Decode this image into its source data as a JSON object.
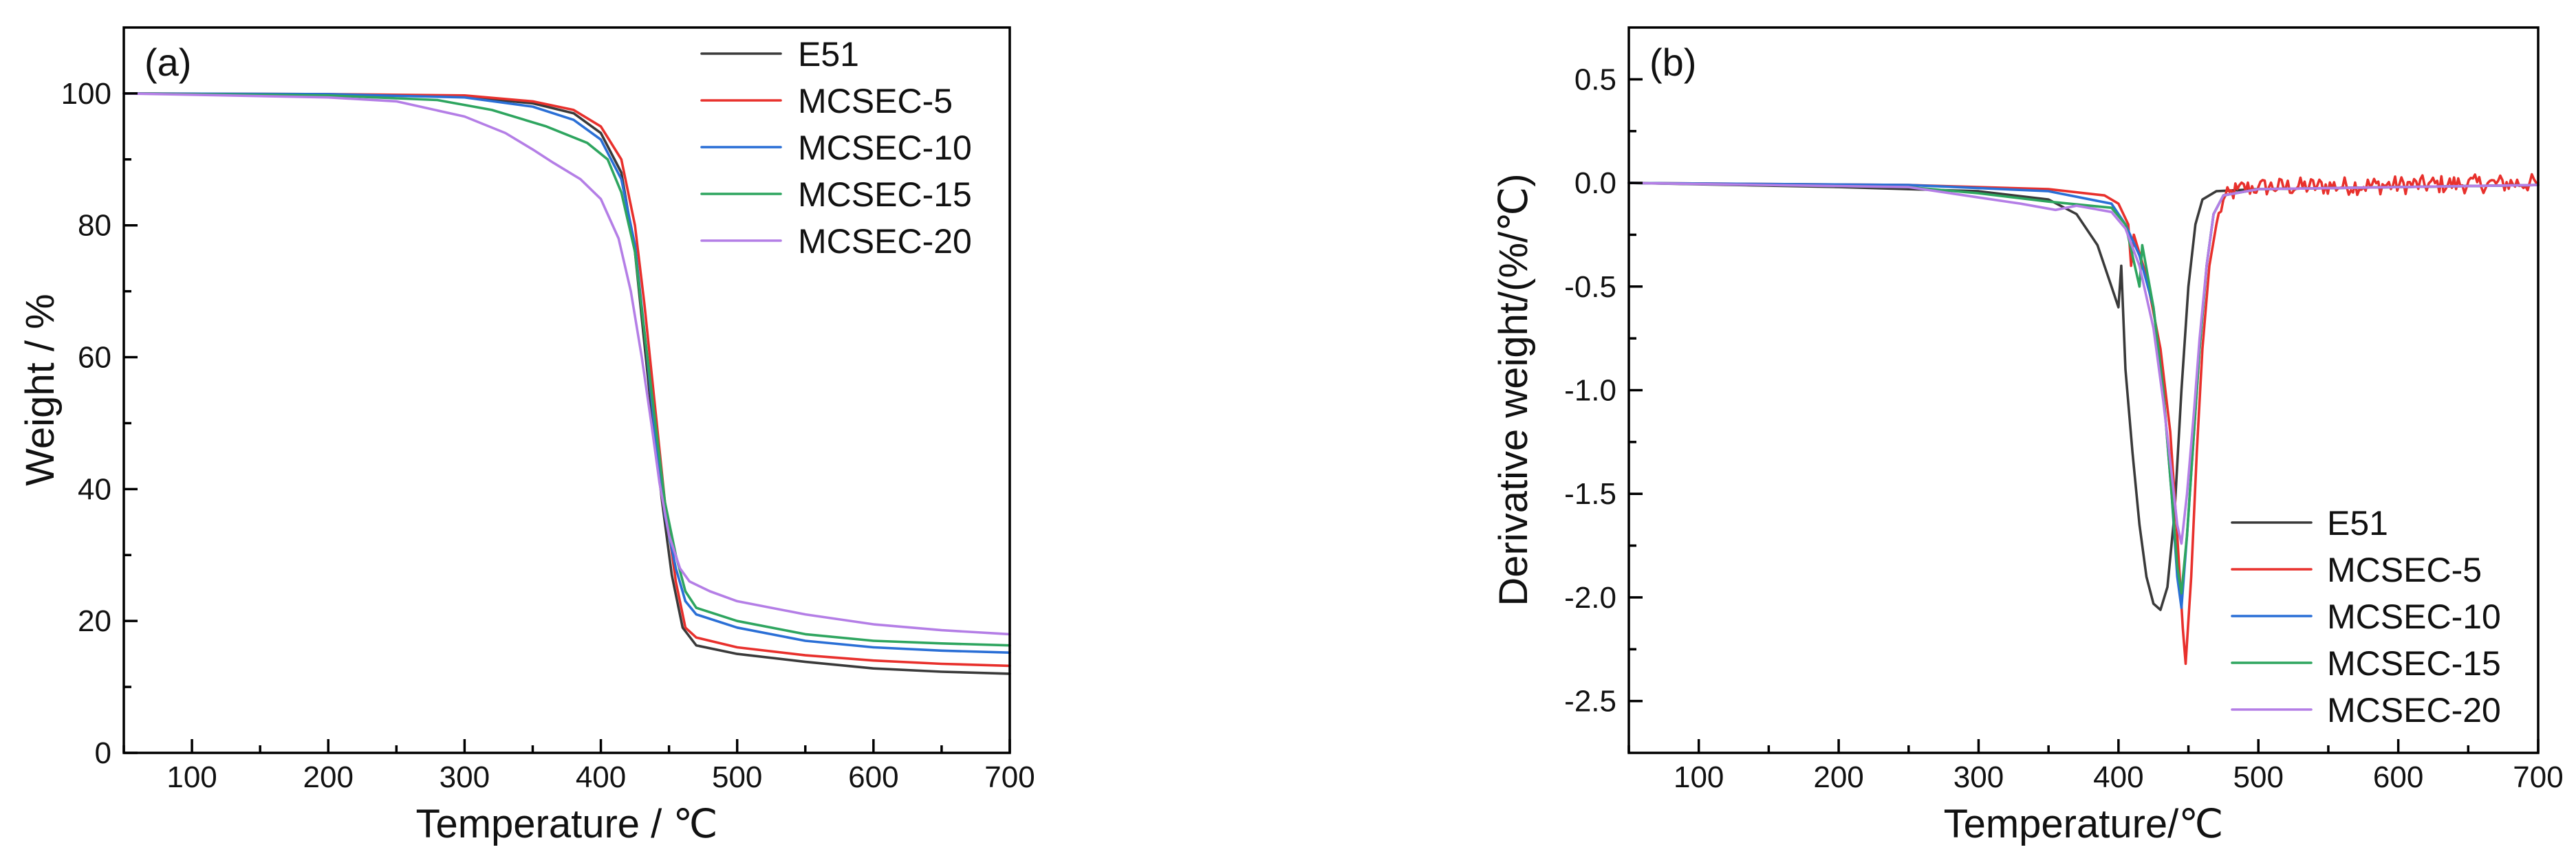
{
  "colors": {
    "E51": "#3a3a3a",
    "MCSEC-5": "#e8302c",
    "MCSEC-10": "#2a6fd6",
    "MCSEC-15": "#2ea55f",
    "MCSEC-20": "#b47ee6"
  },
  "chart_data": [
    {
      "type": "line",
      "panel_label": "(a)",
      "xlabel": "Temperature / ℃",
      "ylabel": "Weight / %",
      "xlim": [
        50,
        700
      ],
      "ylim": [
        0,
        110
      ],
      "xticks": [
        100,
        200,
        300,
        400,
        500,
        600,
        700
      ],
      "yticks": [
        0,
        20,
        40,
        60,
        80,
        100
      ],
      "legend_position": "top-right",
      "series": [
        {
          "name": "E51",
          "points": [
            [
              50,
              100
            ],
            [
              200,
              99.8
            ],
            [
              300,
              99.5
            ],
            [
              350,
              98.5
            ],
            [
              380,
              97
            ],
            [
              400,
              94
            ],
            [
              415,
              88
            ],
            [
              425,
              76
            ],
            [
              432,
              62
            ],
            [
              438,
              50
            ],
            [
              445,
              38
            ],
            [
              452,
              27
            ],
            [
              460,
              19
            ],
            [
              470,
              16.3
            ],
            [
              500,
              15
            ],
            [
              550,
              13.8
            ],
            [
              600,
              12.8
            ],
            [
              650,
              12.3
            ],
            [
              700,
              12
            ]
          ]
        },
        {
          "name": "MCSEC-5",
          "points": [
            [
              50,
              100
            ],
            [
              200,
              99.9
            ],
            [
              300,
              99.7
            ],
            [
              350,
              98.8
            ],
            [
              380,
              97.5
            ],
            [
              400,
              95
            ],
            [
              415,
              90
            ],
            [
              425,
              80
            ],
            [
              432,
              68
            ],
            [
              440,
              52
            ],
            [
              447,
              38
            ],
            [
              455,
              26
            ],
            [
              462,
              19
            ],
            [
              470,
              17.5
            ],
            [
              500,
              16
            ],
            [
              550,
              14.8
            ],
            [
              600,
              14
            ],
            [
              650,
              13.5
            ],
            [
              700,
              13.2
            ]
          ]
        },
        {
          "name": "MCSEC-10",
          "points": [
            [
              50,
              100
            ],
            [
              200,
              99.9
            ],
            [
              300,
              99.4
            ],
            [
              350,
              98
            ],
            [
              380,
              96
            ],
            [
              400,
              93
            ],
            [
              415,
              87
            ],
            [
              425,
              77
            ],
            [
              433,
              62
            ],
            [
              440,
              48
            ],
            [
              447,
              36
            ],
            [
              455,
              28
            ],
            [
              462,
              23
            ],
            [
              470,
              21
            ],
            [
              500,
              19
            ],
            [
              550,
              17
            ],
            [
              600,
              16
            ],
            [
              650,
              15.5
            ],
            [
              700,
              15.2
            ]
          ]
        },
        {
          "name": "MCSEC-15",
          "points": [
            [
              50,
              100
            ],
            [
              200,
              99.7
            ],
            [
              280,
              99
            ],
            [
              320,
              97.5
            ],
            [
              360,
              95
            ],
            [
              390,
              92.5
            ],
            [
              405,
              90
            ],
            [
              415,
              85
            ],
            [
              425,
              76
            ],
            [
              433,
              62
            ],
            [
              440,
              50
            ],
            [
              447,
              38
            ],
            [
              455,
              30
            ],
            [
              462,
              24.5
            ],
            [
              470,
              22
            ],
            [
              500,
              20
            ],
            [
              550,
              18
            ],
            [
              600,
              17
            ],
            [
              650,
              16.6
            ],
            [
              700,
              16.3
            ]
          ]
        },
        {
          "name": "MCSEC-20",
          "points": [
            [
              50,
              100
            ],
            [
              200,
              99.4
            ],
            [
              250,
              98.8
            ],
            [
              300,
              96.5
            ],
            [
              330,
              94
            ],
            [
              350,
              91.5
            ],
            [
              365,
              89.5
            ],
            [
              385,
              87
            ],
            [
              400,
              84
            ],
            [
              413,
              78
            ],
            [
              422,
              70
            ],
            [
              430,
              60
            ],
            [
              437,
              50
            ],
            [
              443,
              41
            ],
            [
              450,
              33
            ],
            [
              458,
              28
            ],
            [
              465,
              26
            ],
            [
              480,
              24.5
            ],
            [
              500,
              23
            ],
            [
              550,
              21
            ],
            [
              600,
              19.5
            ],
            [
              650,
              18.6
            ],
            [
              700,
              18
            ]
          ]
        }
      ]
    },
    {
      "type": "line",
      "panel_label": "(b)",
      "xlabel": "Temperature/℃",
      "ylabel": "Derivative weight/(%/℃)",
      "xlim": [
        50,
        700
      ],
      "ylim": [
        -2.75,
        0.75
      ],
      "xticks": [
        100,
        200,
        300,
        400,
        500,
        600,
        700
      ],
      "yticks": [
        -2.5,
        -2.0,
        -1.5,
        -1.0,
        -0.5,
        0.0,
        0.5
      ],
      "ytick_labels": [
        "-2.5",
        "-2.0",
        "-1.5",
        "-1.0",
        "-0.5",
        "0.0",
        "0.5"
      ],
      "legend_position": "bottom-right",
      "series": [
        {
          "name": "E51",
          "points": [
            [
              50,
              0
            ],
            [
              200,
              -0.02
            ],
            [
              300,
              -0.04
            ],
            [
              350,
              -0.08
            ],
            [
              370,
              -0.15
            ],
            [
              385,
              -0.3
            ],
            [
              395,
              -0.5
            ],
            [
              400,
              -0.6
            ],
            [
              402,
              -0.4
            ],
            [
              405,
              -0.9
            ],
            [
              410,
              -1.3
            ],
            [
              415,
              -1.65
            ],
            [
              420,
              -1.9
            ],
            [
              425,
              -2.03
            ],
            [
              430,
              -2.06
            ],
            [
              435,
              -1.95
            ],
            [
              440,
              -1.6
            ],
            [
              445,
              -1.0
            ],
            [
              450,
              -0.5
            ],
            [
              455,
              -0.2
            ],
            [
              460,
              -0.08
            ],
            [
              470,
              -0.04
            ],
            [
              500,
              -0.03
            ],
            [
              600,
              -0.02
            ],
            [
              700,
              -0.01
            ]
          ]
        },
        {
          "name": "MCSEC-5",
          "points": [
            [
              50,
              0
            ],
            [
              250,
              -0.01
            ],
            [
              350,
              -0.03
            ],
            [
              390,
              -0.06
            ],
            [
              400,
              -0.1
            ],
            [
              407,
              -0.2
            ],
            [
              409,
              -0.4
            ],
            [
              411,
              -0.25
            ],
            [
              420,
              -0.45
            ],
            [
              430,
              -0.8
            ],
            [
              437,
              -1.2
            ],
            [
              442,
              -1.7
            ],
            [
              446,
              -2.15
            ],
            [
              448,
              -2.32
            ],
            [
              452,
              -1.9
            ],
            [
              456,
              -1.3
            ],
            [
              460,
              -0.8
            ],
            [
              465,
              -0.4
            ],
            [
              470,
              -0.2
            ],
            [
              475,
              -0.08
            ],
            [
              485,
              -0.03
            ],
            [
              500,
              -0.02
            ],
            [
              700,
              0
            ]
          ],
          "noisy_from": 470
        },
        {
          "name": "MCSEC-10",
          "points": [
            [
              50,
              0
            ],
            [
              250,
              -0.01
            ],
            [
              350,
              -0.04
            ],
            [
              395,
              -0.1
            ],
            [
              405,
              -0.2
            ],
            [
              415,
              -0.35
            ],
            [
              425,
              -0.6
            ],
            [
              432,
              -1.0
            ],
            [
              438,
              -1.5
            ],
            [
              442,
              -1.9
            ],
            [
              445,
              -2.05
            ],
            [
              449,
              -1.7
            ],
            [
              454,
              -1.2
            ],
            [
              458,
              -0.8
            ],
            [
              463,
              -0.4
            ],
            [
              468,
              -0.15
            ],
            [
              475,
              -0.06
            ],
            [
              500,
              -0.03
            ],
            [
              700,
              -0.01
            ]
          ]
        },
        {
          "name": "MCSEC-15",
          "points": [
            [
              50,
              0
            ],
            [
              250,
              -0.02
            ],
            [
              300,
              -0.05
            ],
            [
              350,
              -0.09
            ],
            [
              395,
              -0.12
            ],
            [
              405,
              -0.2
            ],
            [
              415,
              -0.5
            ],
            [
              417,
              -0.3
            ],
            [
              425,
              -0.6
            ],
            [
              432,
              -1.0
            ],
            [
              438,
              -1.5
            ],
            [
              442,
              -1.85
            ],
            [
              445,
              -1.98
            ],
            [
              449,
              -1.7
            ],
            [
              454,
              -1.2
            ],
            [
              458,
              -0.8
            ],
            [
              463,
              -0.4
            ],
            [
              468,
              -0.15
            ],
            [
              475,
              -0.06
            ],
            [
              500,
              -0.03
            ],
            [
              700,
              -0.01
            ]
          ]
        },
        {
          "name": "MCSEC-20",
          "points": [
            [
              50,
              0
            ],
            [
              250,
              -0.02
            ],
            [
              300,
              -0.07
            ],
            [
              330,
              -0.1
            ],
            [
              355,
              -0.13
            ],
            [
              370,
              -0.11
            ],
            [
              395,
              -0.14
            ],
            [
              405,
              -0.22
            ],
            [
              415,
              -0.4
            ],
            [
              425,
              -0.7
            ],
            [
              432,
              -1.05
            ],
            [
              438,
              -1.4
            ],
            [
              442,
              -1.65
            ],
            [
              445,
              -1.74
            ],
            [
              449,
              -1.5
            ],
            [
              454,
              -1.1
            ],
            [
              458,
              -0.75
            ],
            [
              463,
              -0.4
            ],
            [
              468,
              -0.15
            ],
            [
              475,
              -0.06
            ],
            [
              500,
              -0.03
            ],
            [
              700,
              -0.01
            ]
          ]
        }
      ]
    }
  ]
}
